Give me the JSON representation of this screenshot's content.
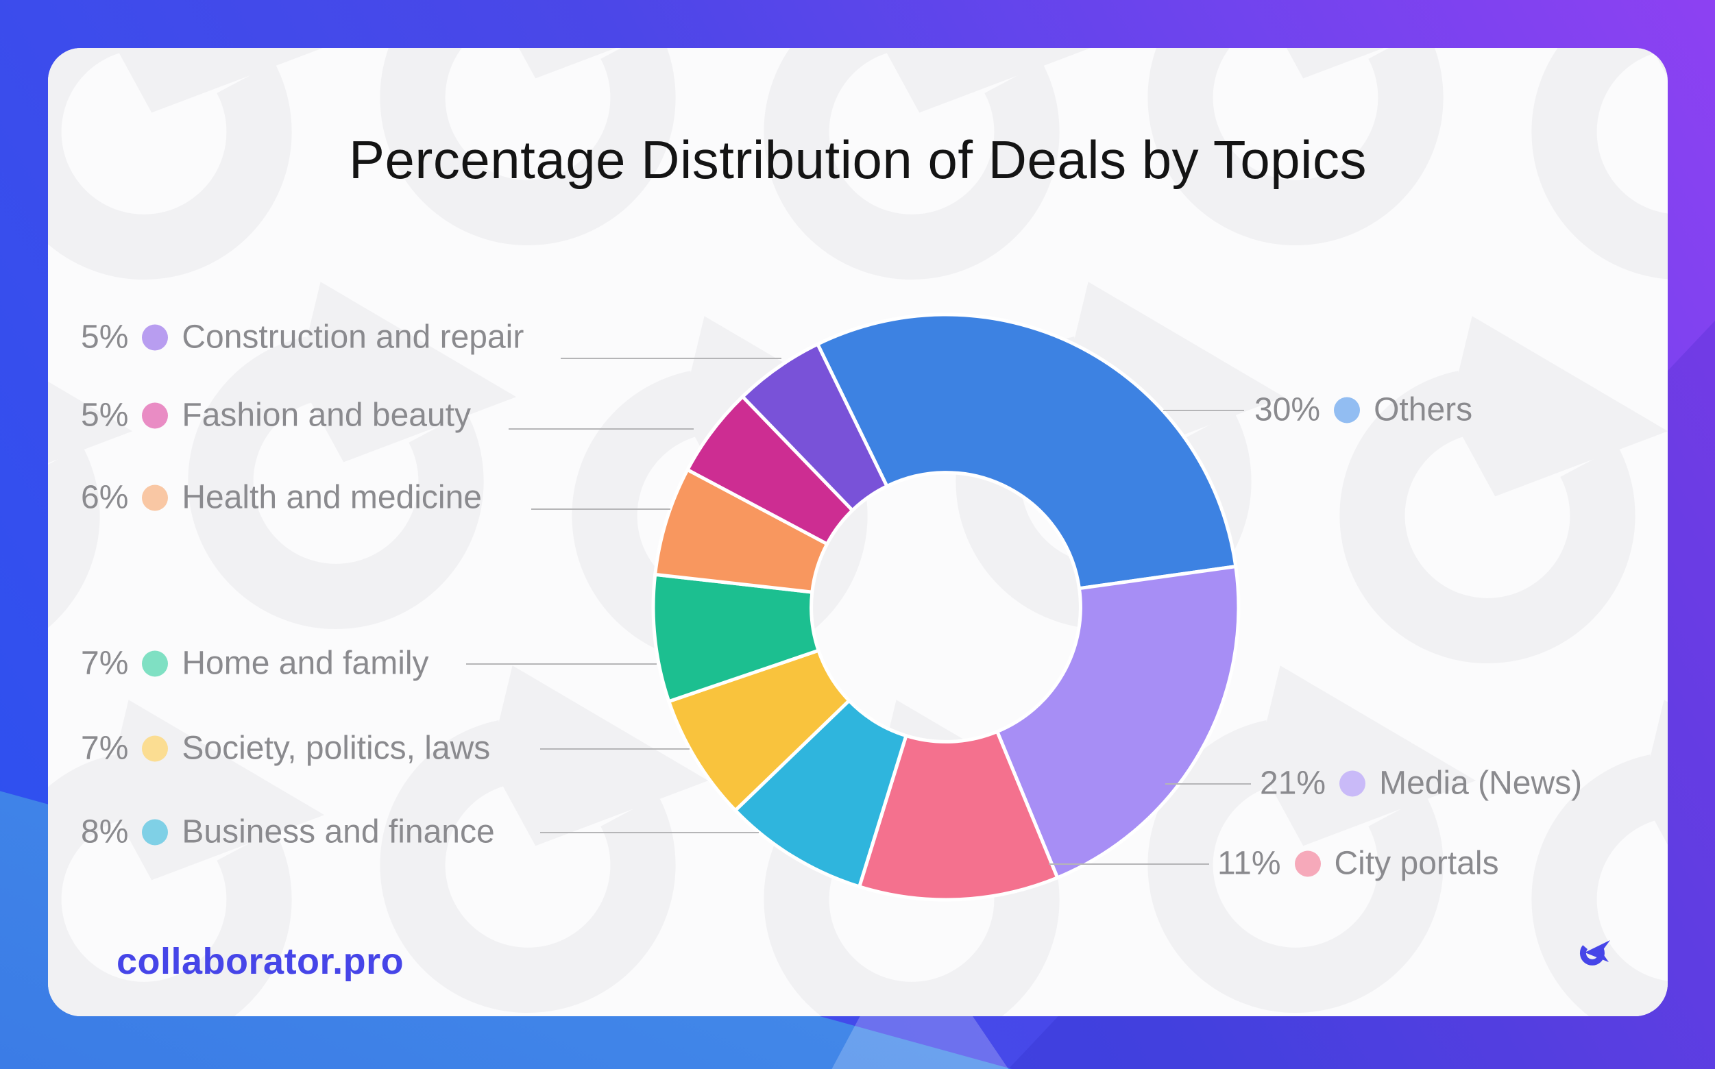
{
  "title": "Percentage Distribution of Deals by Topics",
  "footer": {
    "brand": "collaborator.pro",
    "logo": "collaborator-logo"
  },
  "colors": {
    "card_background": "#fbfbfc",
    "watermark": "#f1f1f3",
    "label_text": "#8a8a8e",
    "title_text": "#141414",
    "leader_line": "#b5b5b7",
    "brand": "#4645e8",
    "backdrop_gradient": [
      "#2b52f0",
      "#4b47e8",
      "#8d41f2"
    ]
  },
  "chart_data": {
    "type": "pie",
    "subtype": "donut",
    "title": "Percentage Distribution of Deals by Topics",
    "direction": "clockwise",
    "start_angle_deg": -26,
    "inner_radius_ratio": 0.46,
    "legend_position": "both-sides",
    "segments": [
      {
        "label": "Others",
        "value": 30,
        "pct_label": "30%",
        "color": "#3d82e2",
        "dot_color": "#92bdf2",
        "legend_side": "right"
      },
      {
        "label": "Media (News)",
        "value": 21,
        "pct_label": "21%",
        "color": "#a78ef5",
        "dot_color": "#c9baf8",
        "legend_side": "right"
      },
      {
        "label": "City portals",
        "value": 11,
        "pct_label": "11%",
        "color": "#f4718e",
        "dot_color": "#f6a9ba",
        "legend_side": "right"
      },
      {
        "label": "Business and finance",
        "value": 8,
        "pct_label": "8%",
        "color": "#2fb5dd",
        "dot_color": "#7fd0e6",
        "legend_side": "left"
      },
      {
        "label": "Society, politics, laws",
        "value": 7,
        "pct_label": "7%",
        "color": "#f9c33d",
        "dot_color": "#fbdd92",
        "legend_side": "left"
      },
      {
        "label": "Home and family",
        "value": 7,
        "pct_label": "7%",
        "color": "#1cbf90",
        "dot_color": "#7fe0c3",
        "legend_side": "left"
      },
      {
        "label": "Health and medicine",
        "value": 6,
        "pct_label": "6%",
        "color": "#f8975f",
        "dot_color": "#f9c7a4",
        "legend_side": "left"
      },
      {
        "label": "Fashion and beauty",
        "value": 5,
        "pct_label": "5%",
        "color": "#cd2d92",
        "dot_color": "#e98cc4",
        "legend_side": "left"
      },
      {
        "label": "Construction and repair",
        "value": 5,
        "pct_label": "5%",
        "color": "#7952d8",
        "dot_color": "#b89df0",
        "legend_side": "left"
      }
    ]
  }
}
